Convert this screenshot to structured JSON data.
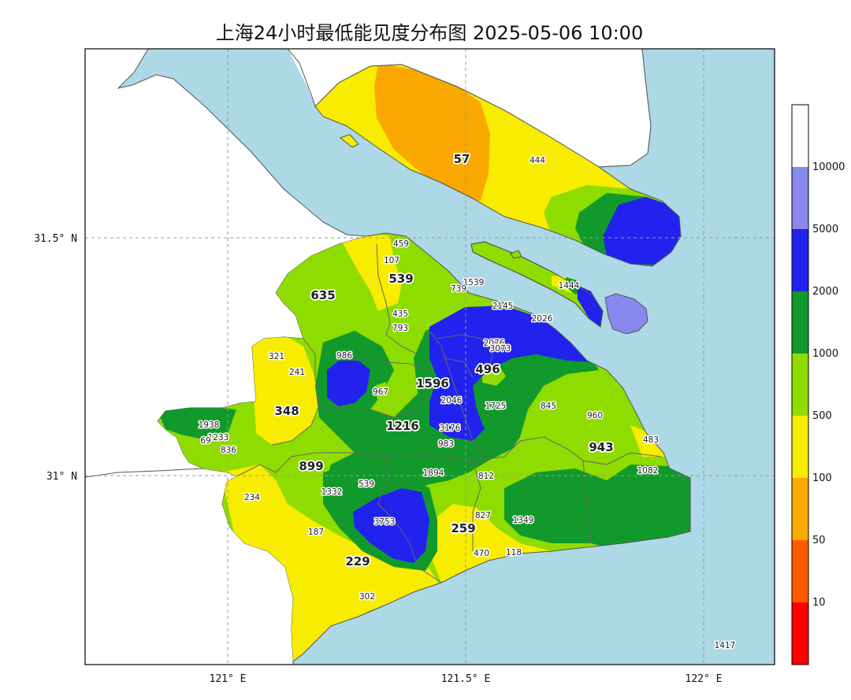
{
  "title": "上海24小时最低能见度分布图 2025-05-06 10:00",
  "axes": {
    "x_ticks": [
      "121° E",
      "121.5° E",
      "122° E"
    ],
    "y_ticks": [
      "31.5° N",
      "31° N"
    ]
  },
  "colorbar": {
    "labels": [
      "10",
      "50",
      "100",
      "500",
      "1000",
      "2000",
      "5000",
      "10000"
    ],
    "colors": [
      "#ff0000",
      "#ff5a00",
      "#fbaa00",
      "#f8ec00",
      "#8edc00",
      "#119a2b",
      "#2222ee",
      "#8888ee",
      "#ffffff"
    ]
  },
  "colors": {
    "water": "#add8e6",
    "land_outside": "#ffffff",
    "orange": "#f9a800",
    "yellow": "#f8ec00",
    "light_green": "#8edc00",
    "dark_green": "#119a2b",
    "blue": "#2222ee",
    "lavender": "#8888ee",
    "border": "#666666"
  },
  "stations_large": [
    {
      "label": "57"
    },
    {
      "label": "539"
    },
    {
      "label": "635"
    },
    {
      "label": "348"
    },
    {
      "label": "1596"
    },
    {
      "label": "496"
    },
    {
      "label": "1216"
    },
    {
      "label": "899"
    },
    {
      "label": "943"
    },
    {
      "label": "259"
    },
    {
      "label": "229"
    }
  ],
  "stations_small": [
    {
      "label": "444"
    },
    {
      "label": "459"
    },
    {
      "label": "107"
    },
    {
      "label": "1539"
    },
    {
      "label": "739"
    },
    {
      "label": "1444"
    },
    {
      "label": "2145"
    },
    {
      "label": "435"
    },
    {
      "label": "793"
    },
    {
      "label": "2026"
    },
    {
      "label": "2076"
    },
    {
      "label": "3073"
    },
    {
      "label": "321"
    },
    {
      "label": "986"
    },
    {
      "label": "241"
    },
    {
      "label": "967"
    },
    {
      "label": "2046"
    },
    {
      "label": "1725"
    },
    {
      "label": "845"
    },
    {
      "label": "960"
    },
    {
      "label": "1938"
    },
    {
      "label": "1233"
    },
    {
      "label": "69"
    },
    {
      "label": "836"
    },
    {
      "label": "3176"
    },
    {
      "label": "983"
    },
    {
      "label": "483"
    },
    {
      "label": "1894"
    },
    {
      "label": "812"
    },
    {
      "label": "1082"
    },
    {
      "label": "539"
    },
    {
      "label": "1332"
    },
    {
      "label": "234"
    },
    {
      "label": "3753"
    },
    {
      "label": "827"
    },
    {
      "label": "1349"
    },
    {
      "label": "187"
    },
    {
      "label": "470"
    },
    {
      "label": "118"
    },
    {
      "label": "302"
    },
    {
      "label": "1417"
    }
  ]
}
